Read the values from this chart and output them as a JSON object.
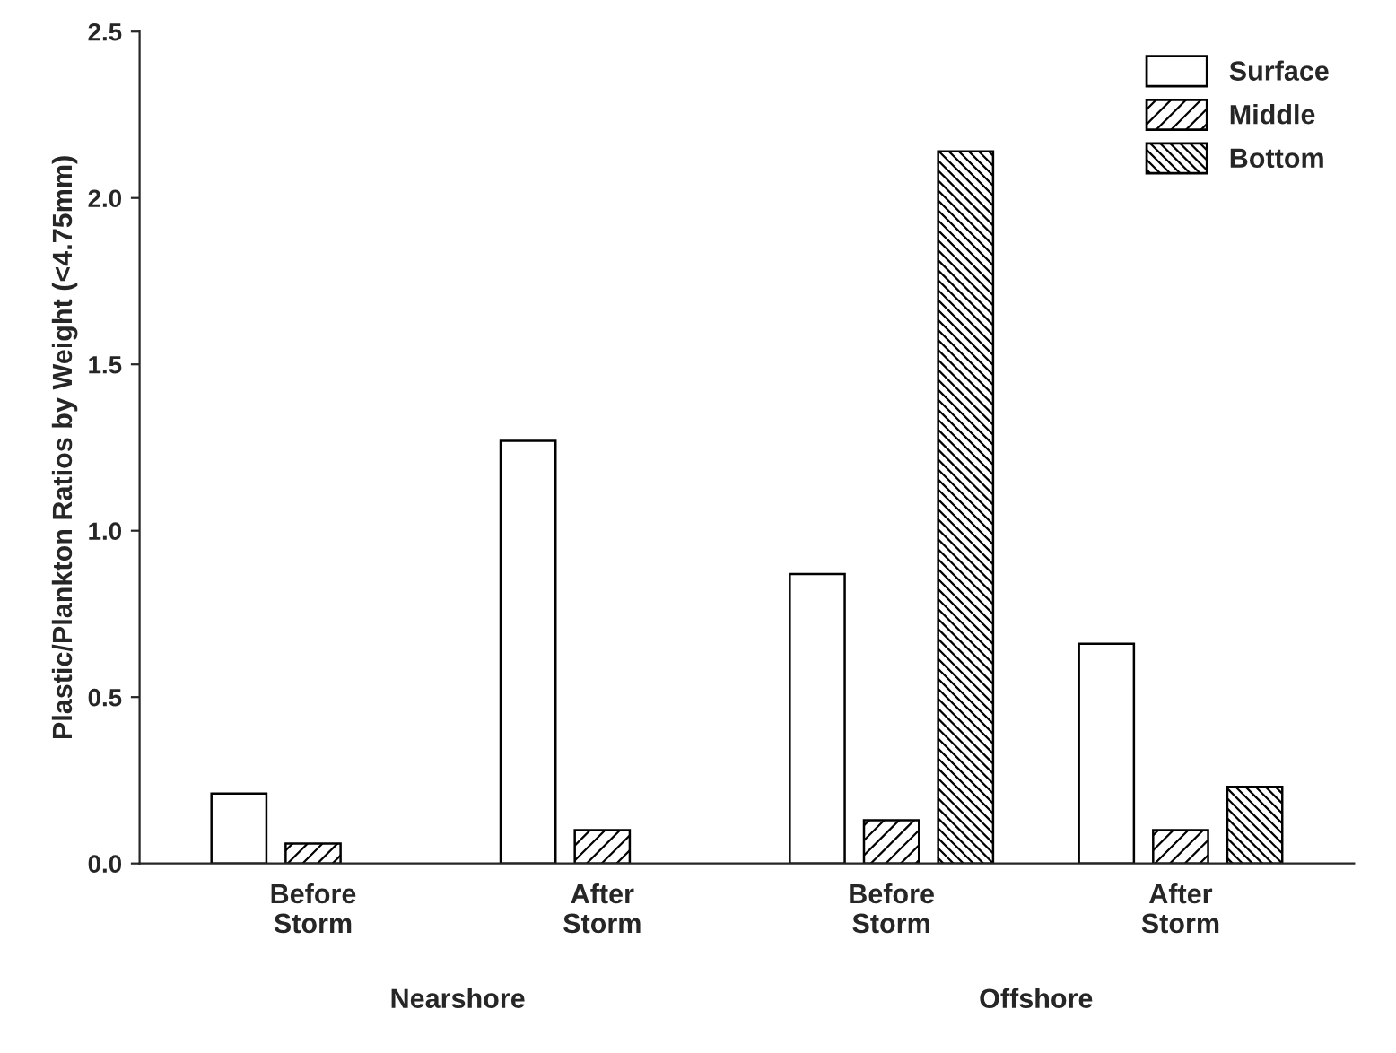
{
  "chart_data": {
    "type": "bar",
    "ylabel": "Plastic/Plankton Ratios by Weight (<4.75mm)",
    "categories": [
      "Before\nStorm",
      "After\nStorm",
      "Before\nStorm",
      "After\nStorm"
    ],
    "series": [
      {
        "name": "Surface",
        "color": "#ffffff",
        "values": [
          0.21,
          1.27,
          0.87,
          0.66
        ]
      },
      {
        "name": "Middle",
        "color": "#000000",
        "values": [
          0.06,
          0.1,
          0.13,
          0.1
        ]
      },
      {
        "name": "Bottom",
        "color": "#000000",
        "values": [
          null,
          null,
          2.14,
          0.23
        ]
      }
    ],
    "annotations": [
      "Nearshore",
      "Offshore"
    ],
    "ylim": [
      0,
      2.5
    ],
    "yticks": [
      {
        "value": 0,
        "label": "0.0"
      },
      {
        "value": 0.5,
        "label": "0.5"
      },
      {
        "value": 1.0,
        "label": "1.0"
      },
      {
        "value": 1.5,
        "label": "1.5"
      },
      {
        "value": 2.0,
        "label": "2.0"
      },
      {
        "value": 2.5,
        "label": "2.5"
      }
    ],
    "legend": "top right",
    "grid": false
  }
}
